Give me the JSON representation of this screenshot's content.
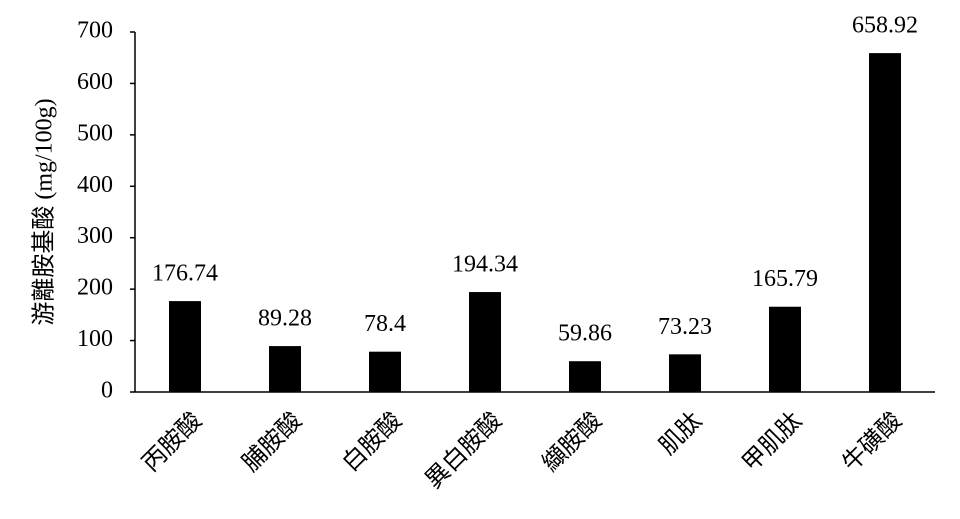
{
  "chart_data": {
    "type": "bar",
    "y_label": "游離胺基酸 (mg/100g)",
    "categories": [
      "丙胺酸",
      "脯胺酸",
      "白胺酸",
      "異白胺酸",
      "纈胺酸",
      "肌肽",
      "甲肌肽",
      "牛磺酸"
    ],
    "values": [
      176.74,
      89.28,
      78.4,
      194.34,
      59.86,
      73.23,
      165.79,
      658.92
    ],
    "color": "#000000",
    "ylim": [
      0,
      700
    ],
    "yticks": [
      0,
      100,
      200,
      300,
      400,
      500,
      600,
      700
    ],
    "grid": false
  }
}
